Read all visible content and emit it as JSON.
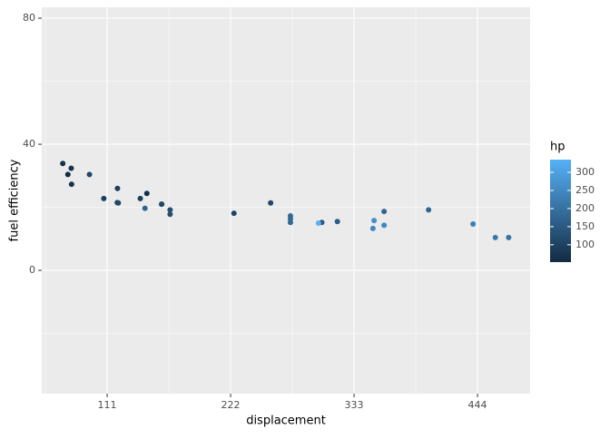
{
  "chart_data": {
    "type": "scatter",
    "x_label": "displacement",
    "y_label": "fuel efficiency",
    "x": [
      160,
      160,
      108,
      258,
      360,
      225,
      360,
      146.7,
      140.8,
      167.6,
      167.6,
      275.8,
      275.8,
      275.8,
      472,
      460,
      440,
      78.7,
      75.7,
      71.1,
      120.1,
      318,
      304,
      350,
      400,
      79,
      120.3,
      95.1,
      351,
      145,
      301,
      121
    ],
    "values": [
      21.0,
      21.0,
      22.8,
      21.4,
      18.7,
      18.1,
      14.3,
      24.4,
      22.8,
      19.2,
      17.8,
      16.4,
      17.3,
      15.2,
      10.4,
      10.4,
      14.7,
      32.4,
      30.4,
      33.9,
      21.5,
      15.5,
      15.2,
      13.3,
      19.2,
      27.3,
      26.0,
      30.4,
      15.8,
      19.7,
      15.0,
      21.4
    ],
    "color_values": [
      110,
      110,
      93,
      110,
      175,
      105,
      245,
      62,
      95,
      123,
      123,
      180,
      180,
      180,
      205,
      215,
      230,
      66,
      52,
      65,
      97,
      150,
      150,
      245,
      175,
      66,
      91,
      113,
      264,
      175,
      335,
      109
    ],
    "xlim": [
      52.2,
      491.3
    ],
    "xticks": [
      111,
      222,
      333,
      444
    ],
    "ylim": [
      -39.1,
      83.45
    ],
    "yticks": [
      0,
      40,
      80
    ],
    "grid": true,
    "colorbar": {
      "title": "hp",
      "lim": [
        52,
        335
      ],
      "ticks": [
        100,
        150,
        200,
        250,
        300
      ],
      "low": "#132B43",
      "high": "#56B1F7"
    }
  }
}
